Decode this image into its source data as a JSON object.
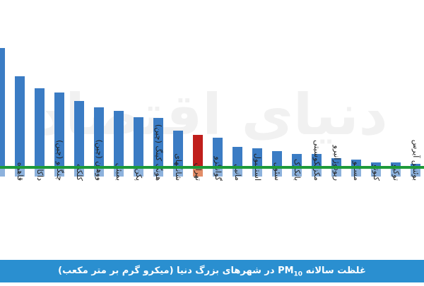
{
  "chart_data": {
    "type": "bar",
    "caption_before": "غلظت سالانه",
    "pollutant": "PM",
    "subscript": "10",
    "caption_after": "در شهرهای بزرگ دنیا (میکرو گرم بر متر مکعب)",
    "watermark": "دنیای اقتصاد",
    "categories": [
      null,
      "قاهره",
      "داکا",
      "چنگدو (چین)",
      "کلکته",
      "ووهان (چین)",
      "بمبئی",
      "پکن",
      "هونگ کینگ (چین)",
      "شانگهای",
      "تهران",
      "گوانگزو",
      "مانیل",
      "استانبول",
      "سئول",
      "بانکوک",
      "مکزیکوسیتی",
      "ریودوژانیرو",
      "مسکو",
      "کیوتو",
      "توکیو",
      "بوئنس آیرس"
    ],
    "values": [
      182,
      142,
      125,
      119,
      107,
      98,
      93,
      84,
      83,
      65,
      59,
      55,
      42,
      40,
      36,
      32,
      32,
      26,
      24,
      20,
      20,
      18
    ],
    "colors": [
      "#3b7cc4",
      "#3b7cc4",
      "#3b7cc4",
      "#3b7cc4",
      "#3b7cc4",
      "#3b7cc4",
      "#3b7cc4",
      "#3b7cc4",
      "#3b7cc4",
      "#3b7cc4",
      "#c01f1c",
      "#3b7cc4",
      "#3b7cc4",
      "#3b7cc4",
      "#3b7cc4",
      "#3b7cc4",
      "#3b7cc4",
      "#3b7cc4",
      "#3b7cc4",
      "#3b7cc4",
      "#3b7cc4",
      "#3b7cc4"
    ],
    "lower_colors": [
      "#8db2dd",
      "#8db2dd",
      "#8db2dd",
      "#8db2dd",
      "#8db2dd",
      "#8db2dd",
      "#8db2dd",
      "#8db2dd",
      "#8db2dd",
      "#8db2dd",
      "#e38d68",
      "#8db2dd",
      "#8db2dd",
      "#8db2dd",
      "#8db2dd",
      "#8db2dd",
      "#8db2dd",
      "#8db2dd",
      "#8db2dd",
      "#8db2dd",
      "#8db2dd",
      "#8db2dd"
    ],
    "reference_line": {
      "value": 13,
      "color": "#1e9a3a"
    },
    "ylim": [
      0,
      200
    ]
  }
}
